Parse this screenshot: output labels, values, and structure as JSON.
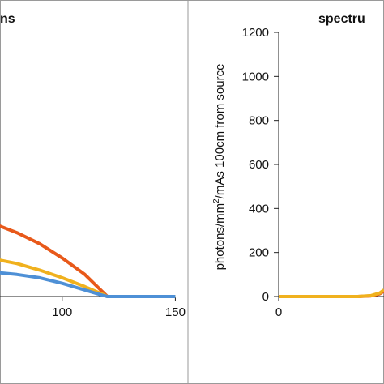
{
  "chart_data": [
    {
      "type": "line",
      "title": "ns",
      "xlabel": "",
      "ylabel": "",
      "x_ticks": [
        "100",
        "150"
      ],
      "xlim": [
        70,
        152
      ],
      "ylim": [
        0,
        1200
      ],
      "grid": false,
      "colors": [
        "#e8591a",
        "#f0b11e",
        "#4e90d6"
      ],
      "series": [
        {
          "values": [
            [
              70,
              330
            ],
            [
              80,
              290
            ],
            [
              90,
              240
            ],
            [
              100,
              175
            ],
            [
              110,
              100
            ],
            [
              118,
              20
            ],
            [
              120,
              0
            ],
            [
              150,
              0
            ]
          ]
        },
        {
          "values": [
            [
              70,
              170
            ],
            [
              80,
              150
            ],
            [
              90,
              120
            ],
            [
              100,
              85
            ],
            [
              110,
              45
            ],
            [
              118,
              10
            ],
            [
              120,
              0
            ],
            [
              150,
              0
            ]
          ]
        },
        {
          "values": [
            [
              70,
              110
            ],
            [
              80,
              100
            ],
            [
              90,
              85
            ],
            [
              100,
              60
            ],
            [
              110,
              30
            ],
            [
              118,
              5
            ],
            [
              120,
              0
            ],
            [
              150,
              0
            ]
          ]
        }
      ]
    },
    {
      "type": "line",
      "title": "spectru",
      "xlabel": "",
      "ylabel_parts": {
        "pre": "photons/mm",
        "sup": "2",
        "post": "/mAs 100cm from source"
      },
      "y_ticks": [
        "0",
        "200",
        "400",
        "600",
        "800",
        "1000",
        "1200"
      ],
      "x_ticks": [
        "0"
      ],
      "ylim": [
        0,
        1200
      ],
      "xlim": [
        0,
        12
      ],
      "grid": false,
      "colors": [
        "#e8591a",
        "#f0b11e"
      ],
      "series": [
        {
          "values": [
            [
              0,
              0
            ],
            [
              9,
              0
            ],
            [
              10.5,
              3
            ],
            [
              11.5,
              12
            ],
            [
              12,
              25
            ]
          ]
        },
        {
          "values": [
            [
              0,
              0
            ],
            [
              9,
              0
            ],
            [
              10.5,
              4
            ],
            [
              11.5,
              16
            ],
            [
              12,
              30
            ]
          ]
        }
      ]
    }
  ]
}
